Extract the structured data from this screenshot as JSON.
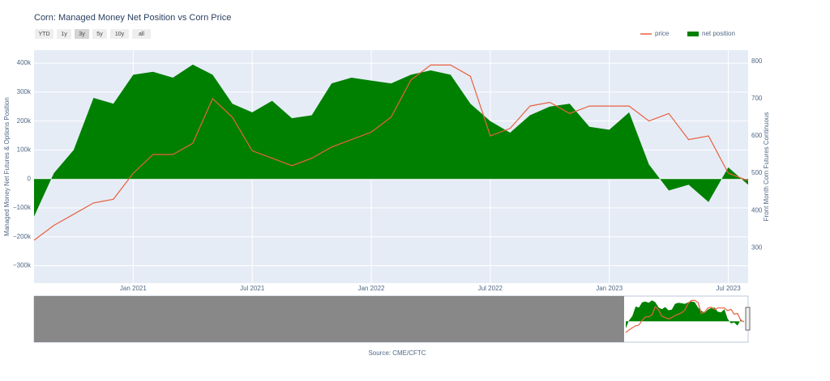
{
  "chart_data": {
    "type": "line",
    "title": "Corn: Managed Money Net Position vs Corn Price",
    "buttons": [
      "YTD",
      "1y",
      "3y",
      "5y",
      "10y",
      "all"
    ],
    "ylabel": "Managed Money Net Futures & Options Position",
    "y2label": "Front Month Corn Futures Continuous",
    "source": "Source: CME/CFTC",
    "x": [
      "2020-08",
      "2020-09",
      "2020-10",
      "2020-11",
      "2020-12",
      "2021-01",
      "2021-02",
      "2021-03",
      "2021-04",
      "2021-05",
      "2021-06",
      "2021-07",
      "2021-08",
      "2021-09",
      "2021-10",
      "2021-11",
      "2021-12",
      "2022-01",
      "2022-02",
      "2022-03",
      "2022-04",
      "2022-05",
      "2022-06",
      "2022-07",
      "2022-08",
      "2022-09",
      "2022-10",
      "2022-11",
      "2022-12",
      "2023-01",
      "2023-02",
      "2023-03",
      "2023-04",
      "2023-05",
      "2023-06",
      "2023-07",
      "2023-08"
    ],
    "xlim": [
      "2020-08",
      "2023-08"
    ],
    "xticks": [
      {
        "value": "2021-01",
        "label": "Jan 2021"
      },
      {
        "value": "2021-07",
        "label": "Jul 2021"
      },
      {
        "value": "2022-01",
        "label": "Jan 2022"
      },
      {
        "value": "2022-07",
        "label": "Jul 2022"
      },
      {
        "value": "2023-01",
        "label": "Jan 2023"
      },
      {
        "value": "2023-07",
        "label": "Jul 2023"
      }
    ],
    "ylim": [
      -360000,
      445000
    ],
    "yticks": [
      {
        "value": -300000,
        "label": "−300k"
      },
      {
        "value": -200000,
        "label": "−200k"
      },
      {
        "value": -100000,
        "label": "−100k"
      },
      0,
      {
        "value": 100000,
        "label": "100k"
      },
      {
        "value": 200000,
        "label": "200k"
      },
      {
        "value": 300000,
        "label": "300k"
      },
      {
        "value": 400000,
        "label": "400k"
      }
    ],
    "y2lim": [
      205,
      830
    ],
    "y2ticks": [
      300,
      400,
      500,
      600,
      700,
      800
    ],
    "grid": true,
    "legend": "top-right",
    "series": [
      {
        "name": "price",
        "type": "line",
        "axis": "y2",
        "color": "#e8613f",
        "values": [
          320,
          360,
          390,
          420,
          430,
          500,
          550,
          550,
          580,
          700,
          650,
          560,
          540,
          520,
          540,
          570,
          590,
          610,
          650,
          750,
          790,
          790,
          760,
          600,
          620,
          680,
          690,
          660,
          680,
          680,
          680,
          640,
          660,
          590,
          600,
          500,
          480
        ]
      },
      {
        "name": "net position",
        "type": "area",
        "color": "#008000",
        "values": [
          -130000,
          20000,
          100000,
          280000,
          260000,
          360000,
          370000,
          350000,
          395000,
          360000,
          260000,
          230000,
          270000,
          210000,
          220000,
          330000,
          350000,
          340000,
          330000,
          360000,
          375000,
          360000,
          260000,
          200000,
          160000,
          220000,
          250000,
          260000,
          180000,
          170000,
          230000,
          50000,
          -40000,
          -20000,
          -80000,
          40000,
          -20000
        ]
      }
    ]
  }
}
